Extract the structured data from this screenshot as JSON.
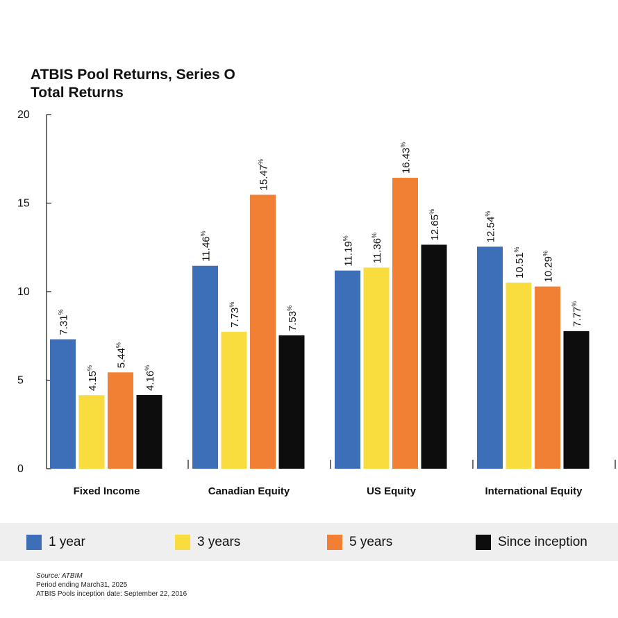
{
  "title": {
    "line1": "ATBIS Pool Returns, Series O",
    "line2": "Total Returns"
  },
  "chart_data": {
    "type": "bar",
    "title": "ATBIS Pool Returns, Series O Total Returns",
    "xlabel": "",
    "ylabel": "",
    "ylim": [
      0,
      20
    ],
    "yticks": [
      0,
      5,
      10,
      15,
      20
    ],
    "value_suffix": "%",
    "categories": [
      "Fixed Income",
      "Canadian Equity",
      "US Equity",
      "International Equity"
    ],
    "series": [
      {
        "name": "1 year",
        "color": "#3d6fb8",
        "values": [
          7.31,
          11.46,
          11.19,
          12.54
        ],
        "labels": [
          "7.31",
          "11.46",
          "11.19",
          "12.54"
        ]
      },
      {
        "name": "3 years",
        "color": "#f9dc3e",
        "values": [
          4.15,
          7.73,
          11.36,
          10.51
        ],
        "labels": [
          "4.15",
          "7.73",
          "11.36",
          "10.51"
        ]
      },
      {
        "name": "5 years",
        "color": "#f28034",
        "values": [
          5.44,
          15.47,
          16.43,
          10.29
        ],
        "labels": [
          "5.44",
          "15.47",
          "16.43",
          "10.29"
        ]
      },
      {
        "name": "Since inception",
        "color": "#0d0d0d",
        "values": [
          4.16,
          7.53,
          12.65,
          7.77
        ],
        "labels": [
          "4.16",
          "7.53",
          "12.65",
          "7.77"
        ]
      }
    ],
    "legend_position": "bottom"
  },
  "legend": {
    "items": [
      {
        "label": "1 year",
        "color": "#3d6fb8"
      },
      {
        "label": "3 years",
        "color": "#f9dc3e"
      },
      {
        "label": "5 years",
        "color": "#f28034"
      },
      {
        "label": "Since inception",
        "color": "#0d0d0d"
      }
    ]
  },
  "source": {
    "line1": "Source: ATBIM",
    "line2": "Period ending March31, 2025",
    "line3": "ATBIS Pools inception date: September 22, 2016"
  }
}
